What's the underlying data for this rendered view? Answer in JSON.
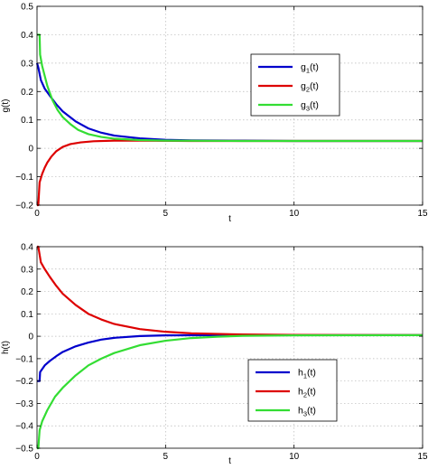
{
  "chart_data": [
    {
      "type": "line",
      "xlabel": "t",
      "ylabel": "g(t)",
      "xlim": [
        0,
        15
      ],
      "ylim": [
        -0.2,
        0.5
      ],
      "xticks": [
        0,
        5,
        10,
        15
      ],
      "yticks": [
        -0.2,
        -0.1,
        0,
        0.1,
        0.2,
        0.3,
        0.4,
        0.5
      ],
      "xtick_labels": [
        "0",
        "5",
        "10",
        "15"
      ],
      "ytick_labels": [
        "−0.2",
        "−0.1",
        "0",
        "0.1",
        "0.2",
        "0.3",
        "0.4",
        "0.5"
      ],
      "grid": true,
      "legend_position": "right",
      "series": [
        {
          "name_main": "g",
          "name_sub": "1",
          "name_tail": "(t)",
          "color": "#0000cc",
          "points": [
            [
              0,
              0.3
            ],
            [
              0.05,
              0.285
            ],
            [
              0.15,
              0.24
            ],
            [
              0.3,
              0.21
            ],
            [
              0.5,
              0.185
            ],
            [
              0.75,
              0.155
            ],
            [
              1,
              0.13
            ],
            [
              1.5,
              0.095
            ],
            [
              2,
              0.07
            ],
            [
              2.5,
              0.055
            ],
            [
              3,
              0.045
            ],
            [
              4,
              0.035
            ],
            [
              5,
              0.03
            ],
            [
              6,
              0.028
            ],
            [
              8,
              0.027
            ],
            [
              10,
              0.026
            ],
            [
              15,
              0.026
            ]
          ]
        },
        {
          "name_main": "g",
          "name_sub": "2",
          "name_tail": "(t)",
          "color": "#dd0000",
          "points": [
            [
              0,
              -0.2
            ],
            [
              0.05,
              -0.2
            ],
            [
              0.1,
              -0.12
            ],
            [
              0.2,
              -0.09
            ],
            [
              0.3,
              -0.068
            ],
            [
              0.4,
              -0.05
            ],
            [
              0.55,
              -0.03
            ],
            [
              0.75,
              -0.01
            ],
            [
              1,
              0.005
            ],
            [
              1.3,
              0.015
            ],
            [
              1.7,
              0.021
            ],
            [
              2.2,
              0.025
            ],
            [
              3,
              0.027
            ],
            [
              4,
              0.027
            ],
            [
              6,
              0.026
            ],
            [
              10,
              0.026
            ],
            [
              15,
              0.026
            ]
          ]
        },
        {
          "name_main": "g",
          "name_sub": "3",
          "name_tail": "(t)",
          "color": "#33dd33",
          "points": [
            [
              0,
              0.4
            ],
            [
              0.1,
              0.4
            ],
            [
              0.12,
              0.33
            ],
            [
              0.2,
              0.29
            ],
            [
              0.4,
              0.22
            ],
            [
              0.6,
              0.17
            ],
            [
              0.8,
              0.135
            ],
            [
              1,
              0.11
            ],
            [
              1.3,
              0.085
            ],
            [
              1.6,
              0.065
            ],
            [
              2,
              0.05
            ],
            [
              2.5,
              0.04
            ],
            [
              3,
              0.034
            ],
            [
              4,
              0.029
            ],
            [
              5,
              0.027
            ],
            [
              8,
              0.026
            ],
            [
              15,
              0.026
            ]
          ]
        }
      ]
    },
    {
      "type": "line",
      "xlabel": "t",
      "ylabel": "h(t)",
      "xlim": [
        0,
        15
      ],
      "ylim": [
        -0.5,
        0.4
      ],
      "xticks": [
        0,
        5,
        10,
        15
      ],
      "yticks": [
        -0.5,
        -0.4,
        -0.3,
        -0.2,
        -0.1,
        0,
        0.1,
        0.2,
        0.3,
        0.4
      ],
      "xtick_labels": [
        "0",
        "5",
        "10",
        "15"
      ],
      "ytick_labels": [
        "−0.5",
        "−0.4",
        "−0.3",
        "−0.2",
        "−0.1",
        "0",
        "0.1",
        "0.2",
        "0.3",
        "0.4"
      ],
      "grid": true,
      "legend_position": "lower-right",
      "series": [
        {
          "name_main": "h",
          "name_sub": "1",
          "name_tail": "(t)",
          "color": "#0000cc",
          "points": [
            [
              0,
              -0.2
            ],
            [
              0.1,
              -0.2
            ],
            [
              0.12,
              -0.16
            ],
            [
              0.3,
              -0.13
            ],
            [
              0.5,
              -0.11
            ],
            [
              0.8,
              -0.085
            ],
            [
              1,
              -0.07
            ],
            [
              1.5,
              -0.045
            ],
            [
              2,
              -0.028
            ],
            [
              2.5,
              -0.015
            ],
            [
              3,
              -0.007
            ],
            [
              4,
              0.001
            ],
            [
              5,
              0.004
            ],
            [
              7,
              0.005
            ],
            [
              10,
              0.005
            ],
            [
              15,
              0.005
            ]
          ]
        },
        {
          "name_main": "h",
          "name_sub": "2",
          "name_tail": "(t)",
          "color": "#dd0000",
          "points": [
            [
              0,
              0.4
            ],
            [
              0.05,
              0.4
            ],
            [
              0.15,
              0.33
            ],
            [
              0.3,
              0.3
            ],
            [
              0.5,
              0.265
            ],
            [
              0.75,
              0.225
            ],
            [
              1,
              0.19
            ],
            [
              1.5,
              0.14
            ],
            [
              2,
              0.1
            ],
            [
              2.5,
              0.075
            ],
            [
              3,
              0.055
            ],
            [
              4,
              0.032
            ],
            [
              5,
              0.02
            ],
            [
              6,
              0.013
            ],
            [
              8,
              0.008
            ],
            [
              10,
              0.006
            ],
            [
              15,
              0.005
            ]
          ]
        },
        {
          "name_main": "h",
          "name_sub": "3",
          "name_tail": "(t)",
          "color": "#33dd33",
          "points": [
            [
              0,
              -0.5
            ],
            [
              0.05,
              -0.5
            ],
            [
              0.1,
              -0.42
            ],
            [
              0.2,
              -0.38
            ],
            [
              0.4,
              -0.33
            ],
            [
              0.7,
              -0.27
            ],
            [
              1,
              -0.23
            ],
            [
              1.5,
              -0.175
            ],
            [
              2,
              -0.13
            ],
            [
              2.5,
              -0.1
            ],
            [
              3,
              -0.075
            ],
            [
              4,
              -0.04
            ],
            [
              5,
              -0.02
            ],
            [
              6,
              -0.008
            ],
            [
              7,
              -0.002
            ],
            [
              8,
              0.002
            ],
            [
              10,
              0.004
            ],
            [
              15,
              0.005
            ]
          ]
        }
      ]
    }
  ]
}
